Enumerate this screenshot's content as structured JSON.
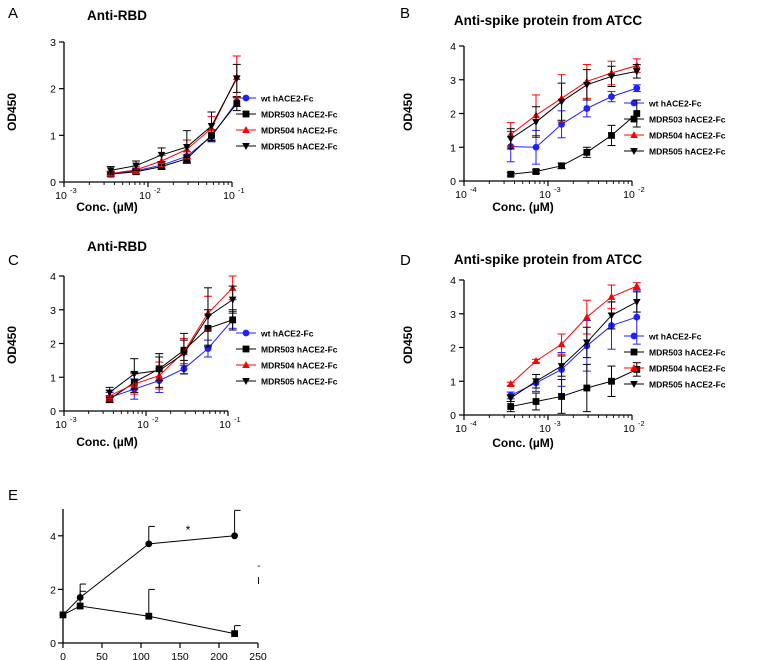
{
  "chart_data": [
    {
      "panel": "A",
      "type": "line",
      "title": "Anti-RBD",
      "xlabel": "Conc. (µM)",
      "ylabel": "OD450",
      "xscale": "log",
      "xlim_exp": [
        -3,
        -1
      ],
      "ylim": [
        0,
        3
      ],
      "yticks": [
        0,
        1,
        2,
        3
      ],
      "xtick_base": "10",
      "xtick_exps": [
        "-3",
        "-2",
        "-1"
      ],
      "legend_position": "right",
      "x": [
        0.0036,
        0.0072,
        0.0145,
        0.029,
        0.057,
        0.114
      ],
      "series": [
        {
          "name": "wt hACE2-Fc",
          "color": "#1f1fff",
          "marker": "circle",
          "values": [
            0.17,
            0.24,
            0.36,
            0.55,
            0.98,
            1.72
          ],
          "err": [
            0.05,
            0.06,
            0.08,
            0.1,
            0.12,
            0.1
          ]
        },
        {
          "name": "MDR503 hACE2-Fc",
          "color": "#000000",
          "marker": "square",
          "values": [
            0.17,
            0.22,
            0.33,
            0.5,
            1.0,
            1.68
          ],
          "err": [
            0.04,
            0.05,
            0.06,
            0.08,
            0.12,
            0.15
          ]
        },
        {
          "name": "MDR504 hACE2-Fc",
          "color": "#ff0000",
          "marker": "triangle",
          "values": [
            0.18,
            0.26,
            0.45,
            0.7,
            1.15,
            2.25
          ],
          "err": [
            0.05,
            0.08,
            0.12,
            0.2,
            0.25,
            0.45
          ]
        },
        {
          "name": "MDR505 hACE2-Fc",
          "color": "#000000",
          "marker": "triangle-down",
          "values": [
            0.25,
            0.35,
            0.58,
            0.75,
            1.2,
            2.22
          ],
          "err": [
            0.08,
            0.1,
            0.15,
            0.35,
            0.3,
            0.3
          ]
        }
      ]
    },
    {
      "panel": "B",
      "type": "line",
      "title": "Anti-spike protein from ATCC",
      "xlabel": "Conc. (µM)",
      "ylabel": "OD450",
      "xscale": "log",
      "xlim_exp": [
        -4,
        -2
      ],
      "ylim": [
        0,
        4
      ],
      "yticks": [
        0,
        1,
        2,
        3,
        4
      ],
      "xtick_base": "10",
      "xtick_exps": [
        "-4",
        "-3",
        "-2"
      ],
      "legend_position": "right",
      "x": [
        0.00036,
        0.00072,
        0.00145,
        0.0029,
        0.0057,
        0.0114
      ],
      "series": [
        {
          "name": "wt hACE2-Fc",
          "color": "#1f1fff",
          "marker": "circle",
          "values": [
            1.02,
            1.0,
            1.68,
            2.15,
            2.5,
            2.75
          ],
          "err": [
            0.45,
            0.5,
            0.4,
            0.25,
            0.15,
            0.1
          ]
        },
        {
          "name": "MDR503 hACE2-Fc",
          "color": "#000000",
          "marker": "square",
          "values": [
            0.2,
            0.28,
            0.45,
            0.85,
            1.35,
            2.0
          ],
          "err": [
            0.05,
            0.05,
            0.08,
            0.15,
            0.3,
            0.4
          ]
        },
        {
          "name": "MDR504 hACE2-Fc",
          "color": "#ff0000",
          "marker": "triangle",
          "values": [
            1.38,
            1.95,
            2.45,
            2.95,
            3.2,
            3.42
          ],
          "err": [
            0.35,
            0.6,
            0.7,
            0.5,
            0.35,
            0.2
          ]
        },
        {
          "name": "MDR505 hACE2-Fc",
          "color": "#000000",
          "marker": "triangle-down",
          "values": [
            1.25,
            1.75,
            2.35,
            2.85,
            3.1,
            3.25
          ],
          "err": [
            0.3,
            0.45,
            0.55,
            0.45,
            0.3,
            0.2
          ]
        }
      ]
    },
    {
      "panel": "C",
      "type": "line",
      "title": "Anti-RBD",
      "xlabel": "Conc. (µM)",
      "ylabel": "OD450",
      "xscale": "log",
      "xlim_exp": [
        -3,
        -1
      ],
      "ylim": [
        0,
        4
      ],
      "yticks": [
        0,
        1,
        2,
        3,
        4
      ],
      "xtick_base": "10",
      "xtick_exps": [
        "-3",
        "-2",
        "-1"
      ],
      "legend_position": "right",
      "x": [
        0.0036,
        0.0072,
        0.0145,
        0.029,
        0.057,
        0.114
      ],
      "series": [
        {
          "name": "wt hACE2-Fc",
          "color": "#1f1fff",
          "marker": "circle",
          "values": [
            0.4,
            0.65,
            0.9,
            1.25,
            1.85,
            2.7
          ],
          "err": [
            0.15,
            0.3,
            0.35,
            0.15,
            0.25,
            0.25
          ]
        },
        {
          "name": "MDR503 hACE2-Fc",
          "color": "#000000",
          "marker": "square",
          "values": [
            0.35,
            0.85,
            1.25,
            1.8,
            2.45,
            2.7
          ],
          "err": [
            0.1,
            0.3,
            0.35,
            0.3,
            0.55,
            0.3
          ]
        },
        {
          "name": "MDR504 hACE2-Fc",
          "color": "#ff0000",
          "marker": "triangle",
          "values": [
            0.45,
            0.8,
            1.05,
            1.75,
            2.9,
            3.65
          ],
          "err": [
            0.15,
            0.3,
            0.4,
            0.4,
            0.5,
            0.35
          ]
        },
        {
          "name": "MDR505 hACE2-Fc",
          "color": "#000000",
          "marker": "triangle-down",
          "values": [
            0.55,
            1.1,
            1.2,
            1.7,
            2.8,
            3.3
          ],
          "err": [
            0.15,
            0.45,
            0.5,
            0.6,
            0.85,
            0.4
          ]
        }
      ]
    },
    {
      "panel": "D",
      "type": "line",
      "title": "Anti-spike protein from ATCC",
      "xlabel": "Conc. (µM)",
      "ylabel": "OD450",
      "xscale": "log",
      "xlim_exp": [
        -4,
        -2
      ],
      "ylim": [
        0,
        4
      ],
      "yticks": [
        0,
        1,
        2,
        3,
        4
      ],
      "xtick_base": "10",
      "xtick_exps": [
        "-4",
        "-3",
        "-2"
      ],
      "legend_position": "right",
      "x": [
        0.00036,
        0.00072,
        0.00145,
        0.0029,
        0.0057,
        0.0114
      ],
      "series": [
        {
          "name": "wt hACE2-Fc",
          "color": "#1f1fff",
          "marker": "circle",
          "values": [
            0.58,
            0.95,
            1.35,
            2.05,
            2.65,
            2.9
          ],
          "err": [
            0.1,
            0.25,
            0.5,
            0.75,
            0.7,
            0.8
          ]
        },
        {
          "name": "MDR503 hACE2-Fc",
          "color": "#000000",
          "marker": "square",
          "values": [
            0.25,
            0.4,
            0.55,
            0.8,
            1.0,
            1.35
          ],
          "err": [
            0.15,
            0.25,
            0.5,
            0.7,
            0.45,
            0.2
          ]
        },
        {
          "name": "MDR504 hACE2-Fc",
          "color": "#ff0000",
          "marker": "triangle",
          "values": [
            0.92,
            1.6,
            2.1,
            2.9,
            3.5,
            3.82
          ],
          "err": [
            0.05,
            0.05,
            0.3,
            0.5,
            0.35,
            0.1
          ]
        },
        {
          "name": "MDR505 hACE2-Fc",
          "color": "#000000",
          "marker": "triangle-down",
          "values": [
            0.5,
            1.0,
            1.45,
            2.15,
            2.95,
            3.35
          ],
          "err": [
            0.1,
            0.2,
            0.3,
            0.45,
            0.4,
            0.3
          ]
        }
      ]
    },
    {
      "panel": "E",
      "type": "line",
      "title": "",
      "xlabel": "",
      "ylabel": "",
      "xscale": "linear",
      "xlim": [
        0,
        250
      ],
      "xticks": [
        0,
        50,
        100,
        150,
        200,
        250
      ],
      "ylim": [
        0,
        5
      ],
      "yticks": [
        0,
        2,
        4
      ],
      "annotations": [
        "*"
      ],
      "legend_marks": [
        "-",
        "I"
      ],
      "series": [
        {
          "name": "circle series",
          "color": "#000000",
          "marker": "circle",
          "x": [
            0,
            22,
            110,
            220
          ],
          "values": [
            1.05,
            1.7,
            3.7,
            4.0
          ],
          "err": [
            0.0,
            0.5,
            0.65,
            0.95
          ]
        },
        {
          "name": "square series",
          "color": "#000000",
          "marker": "square",
          "x": [
            0,
            22,
            110,
            220
          ],
          "values": [
            1.05,
            1.38,
            1.0,
            0.35
          ],
          "err": [
            0.0,
            0.55,
            1.0,
            0.3
          ]
        }
      ]
    }
  ],
  "panel_labels": [
    "A",
    "B",
    "C",
    "D",
    "E"
  ]
}
